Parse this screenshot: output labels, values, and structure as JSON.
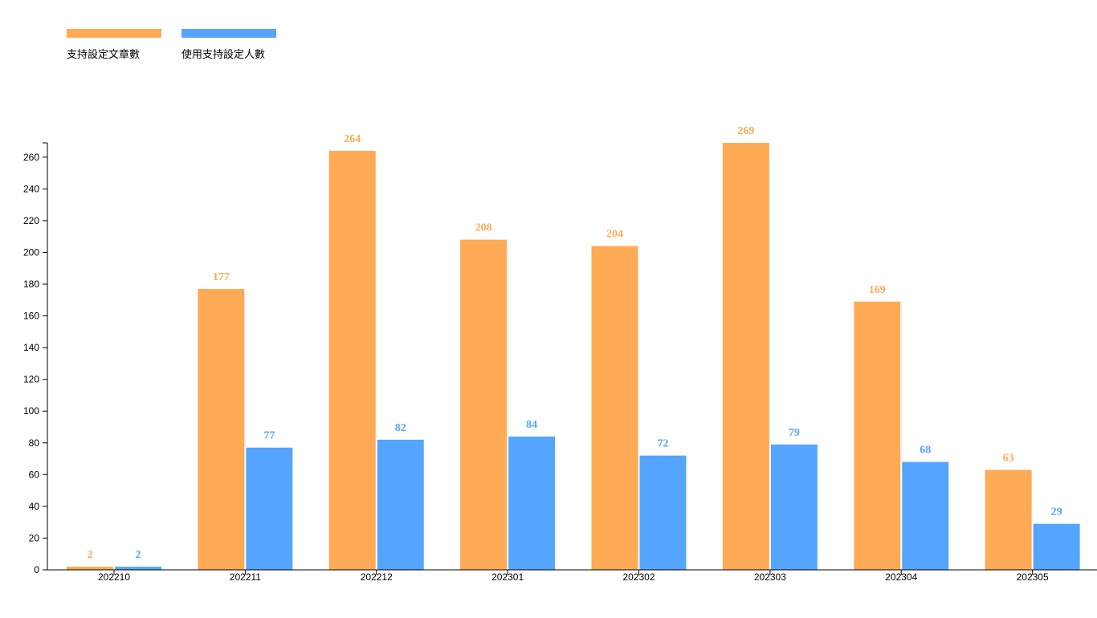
{
  "chart_data": {
    "type": "bar",
    "categories": [
      "202210",
      "202211",
      "202212",
      "202301",
      "202302",
      "202303",
      "202304",
      "202305"
    ],
    "series": [
      {
        "name": "支持設定文章數",
        "color": "#ffaa55",
        "values": [
          2,
          177,
          264,
          208,
          204,
          269,
          169,
          63
        ]
      },
      {
        "name": "使用支持設定人數",
        "color": "#55a5ff",
        "values": [
          2,
          77,
          82,
          84,
          72,
          79,
          68,
          29
        ]
      }
    ],
    "ylim": [
      0,
      269
    ],
    "yticks": [
      0,
      20,
      40,
      60,
      80,
      100,
      120,
      140,
      160,
      180,
      200,
      220,
      240,
      260
    ],
    "grid": false,
    "legend_position": "top-left",
    "data_labels": true
  }
}
